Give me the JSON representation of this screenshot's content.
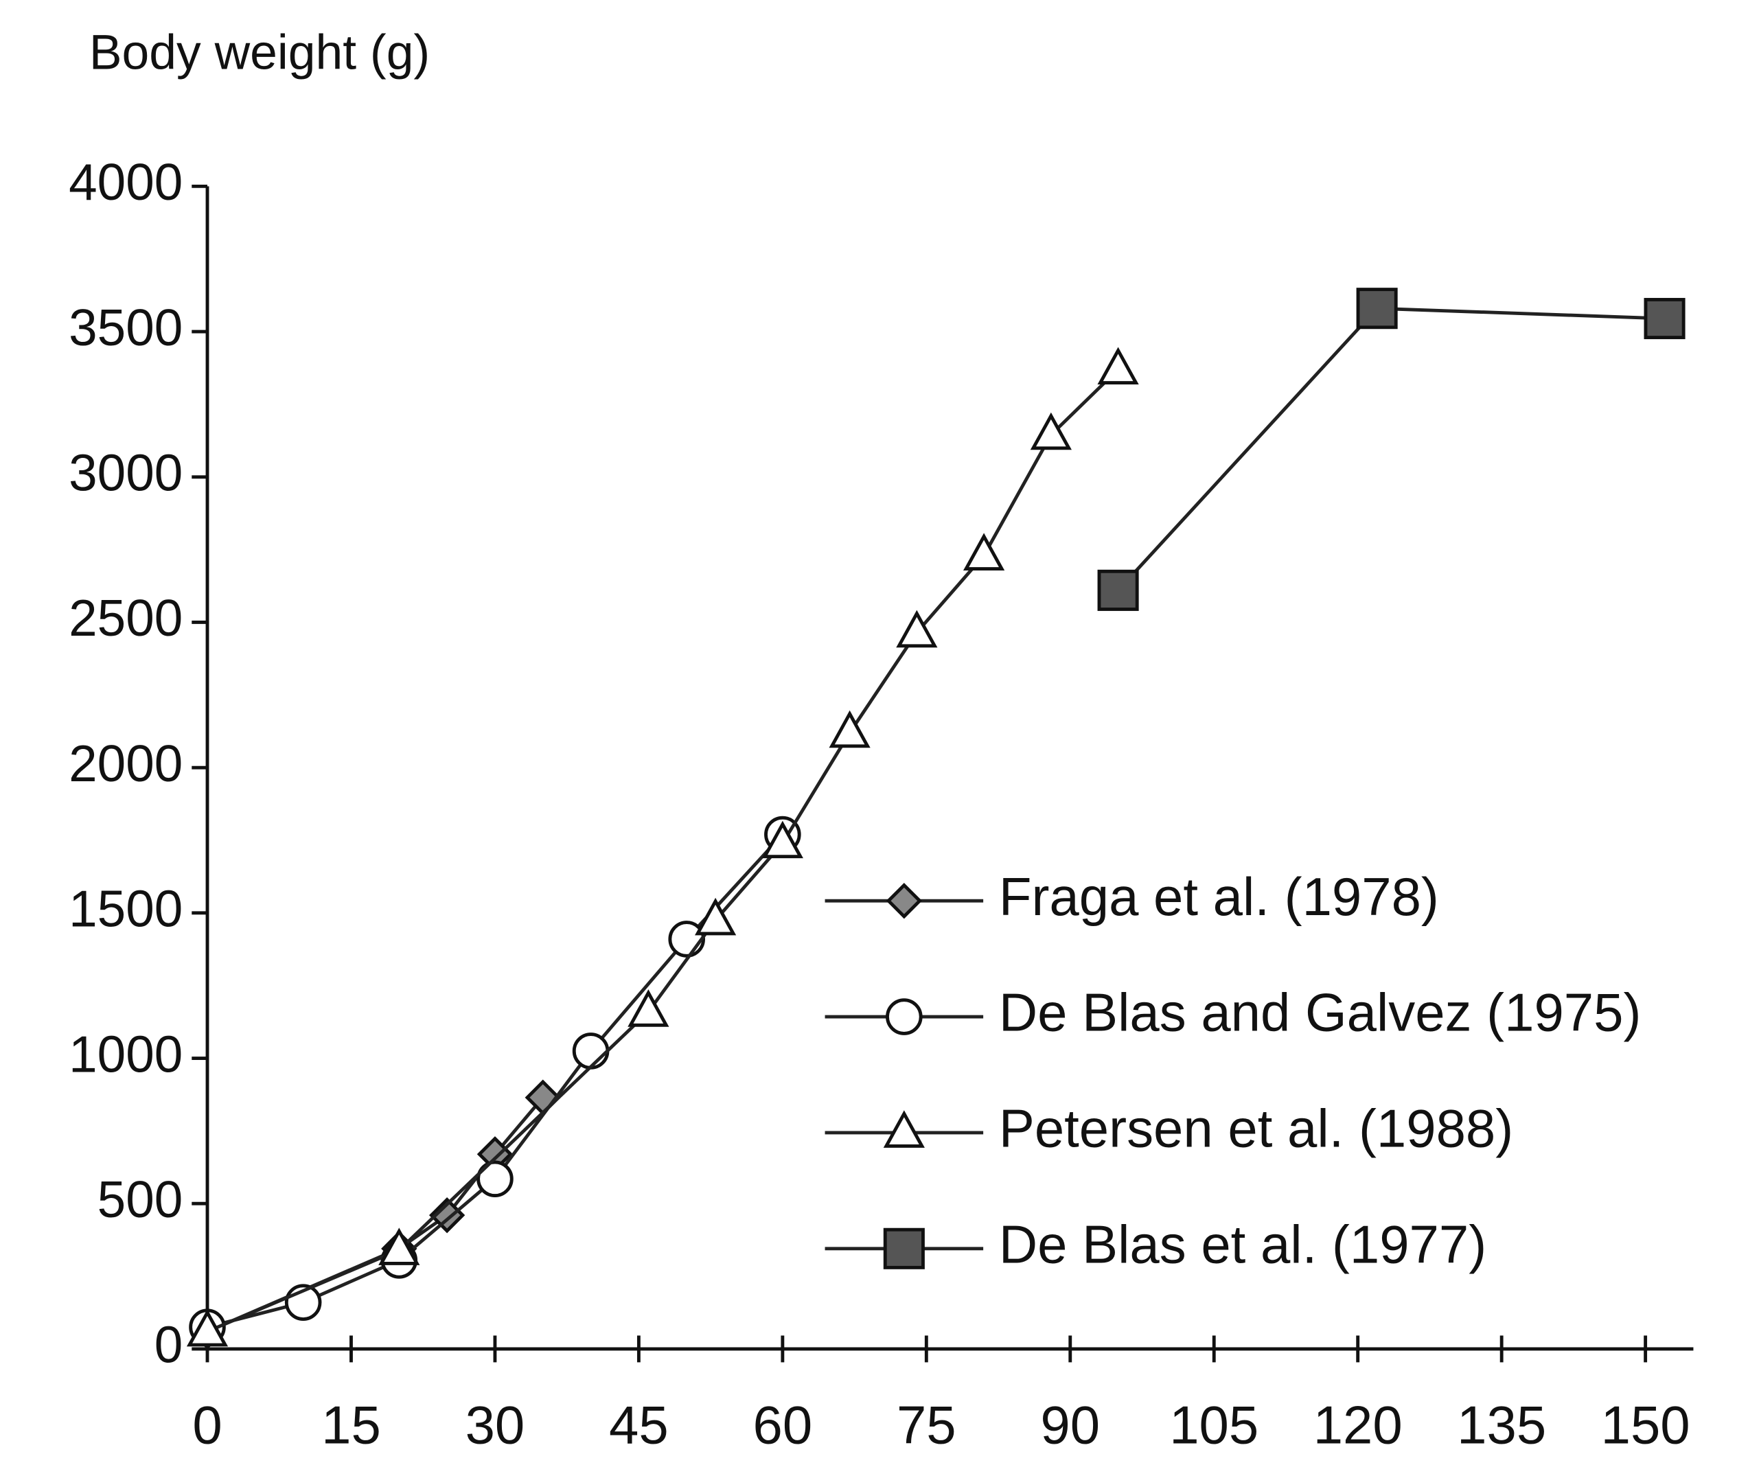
{
  "chart_data": {
    "type": "line",
    "y_label": "Body  weight (g)",
    "xlim": [
      0,
      155
    ],
    "xticks": [
      0,
      15,
      30,
      45,
      60,
      75,
      90,
      105,
      120,
      135,
      150
    ],
    "ylim": [
      0,
      4000
    ],
    "yticks": [
      0,
      500,
      1000,
      1500,
      2000,
      2500,
      3000,
      3500,
      4000
    ],
    "series": [
      {
        "name": "Fraga et al. (1978)",
        "color": "#222222",
        "marker": "diamond",
        "marker_fill": "#888888",
        "x": [
          0,
          20,
          25,
          30,
          35
        ],
        "values": [
          60,
          345,
          460,
          670,
          865
        ]
      },
      {
        "name": "De Blas and Galvez (1975)",
        "color": "#222222",
        "marker": "circle",
        "marker_fill": "#ffffff",
        "x": [
          0,
          10,
          20,
          30,
          40,
          50,
          60
        ],
        "values": [
          75,
          160,
          305,
          585,
          1025,
          1410,
          1770
        ]
      },
      {
        "name": "Petersen et al. (1988)",
        "color": "#222222",
        "marker": "triangle",
        "marker_fill": "#ffffff",
        "x": [
          0,
          20,
          46,
          53,
          60,
          67,
          74,
          81,
          88,
          95
        ],
        "values": [
          60,
          340,
          1160,
          1475,
          1740,
          2120,
          2465,
          2730,
          3145,
          3370
        ]
      },
      {
        "name": "De Blas et al. (1977)",
        "color": "#222222",
        "marker": "square",
        "marker_fill": "#555555",
        "x": [
          95,
          122,
          152
        ],
        "values": [
          2610,
          3580,
          3545
        ]
      }
    ]
  }
}
